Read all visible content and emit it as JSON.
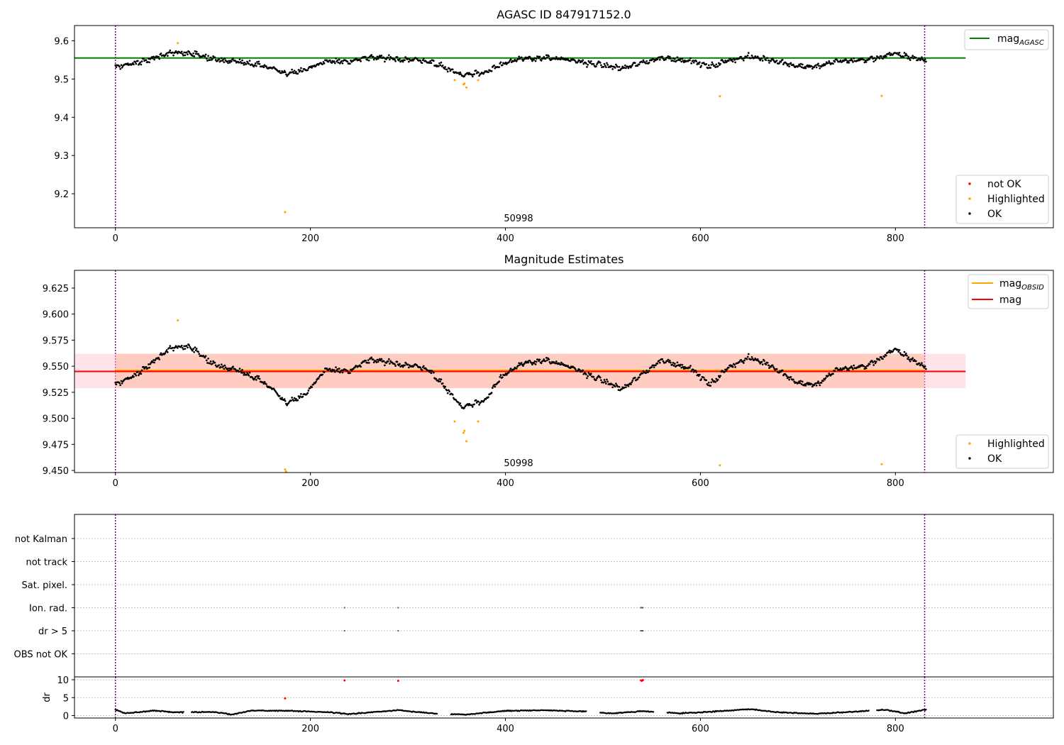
{
  "colors": {
    "ok": "#000000",
    "highlighted": "#ffa500",
    "not_ok": "#ff0000",
    "mag_agasc": "#008000",
    "mag_obsid": "#ffa500",
    "mag": "#ff0000",
    "obs_boundary": "#800080",
    "band_outer": "#ffc0cb",
    "band_inner": "#ffa07a"
  },
  "chart_data": [
    {
      "type": "scatter",
      "title": "AGASC ID 847917152.0",
      "xlim": [
        -42,
        962
      ],
      "ylim": [
        9.111,
        9.64
      ],
      "xticks": [
        "0",
        "200",
        "400",
        "600",
        "800"
      ],
      "yticks": [
        "9.2",
        "9.3",
        "9.4",
        "9.5",
        "9.6"
      ],
      "grid": false,
      "legend_placement": [
        "upper right",
        "lower right"
      ],
      "annotation": {
        "text": "50998",
        "x": 415
      },
      "obs_boundaries_x": [
        0,
        830
      ],
      "lines": [
        {
          "name": "mag",
          "sub": "AGASC",
          "y": 9.555,
          "x_range": [
            -42,
            872
          ],
          "color": "#008000"
        }
      ],
      "series": [
        {
          "name": "not OK",
          "color": "#ff0000",
          "points": []
        },
        {
          "name": "Highlighted",
          "color": "#ffa500",
          "points": [
            [
              64,
              9.594
            ],
            [
              174,
              9.152
            ],
            [
              348,
              9.497
            ],
            [
              357,
              9.486
            ],
            [
              358,
              9.488
            ],
            [
              360,
              9.478
            ],
            [
              372,
              9.497
            ],
            [
              620,
              9.455
            ],
            [
              786,
              9.456
            ]
          ]
        },
        {
          "name": "OK",
          "color": "#000000",
          "generated_from_trend": true,
          "x_range": [
            0,
            832
          ],
          "trend": [
            [
              0,
              9.533
            ],
            [
              20,
              9.541
            ],
            [
              40,
              9.555
            ],
            [
              55,
              9.566
            ],
            [
              75,
              9.57
            ],
            [
              100,
              9.552
            ],
            [
              130,
              9.545
            ],
            [
              150,
              9.536
            ],
            [
              165,
              9.525
            ],
            [
              175,
              9.515
            ],
            [
              195,
              9.522
            ],
            [
              215,
              9.547
            ],
            [
              240,
              9.545
            ],
            [
              260,
              9.556
            ],
            [
              300,
              9.551
            ],
            [
              320,
              9.548
            ],
            [
              340,
              9.528
            ],
            [
              355,
              9.511
            ],
            [
              365,
              9.513
            ],
            [
              380,
              9.518
            ],
            [
              395,
              9.54
            ],
            [
              420,
              9.553
            ],
            [
              440,
              9.556
            ],
            [
              470,
              9.548
            ],
            [
              500,
              9.536
            ],
            [
              520,
              9.528
            ],
            [
              540,
              9.542
            ],
            [
              560,
              9.556
            ],
            [
              590,
              9.548
            ],
            [
              610,
              9.532
            ],
            [
              630,
              9.55
            ],
            [
              650,
              9.558
            ],
            [
              670,
              9.552
            ],
            [
              700,
              9.534
            ],
            [
              720,
              9.532
            ],
            [
              740,
              9.547
            ],
            [
              770,
              9.55
            ],
            [
              800,
              9.566
            ],
            [
              832,
              9.548
            ]
          ]
        }
      ],
      "legends": [
        {
          "entries": [
            "mag"
          ],
          "sub": "AGASC"
        },
        {
          "entries": [
            "not OK",
            "Highlighted",
            "OK"
          ]
        }
      ]
    },
    {
      "type": "scatter",
      "title": "Magnitude Estimates",
      "xlim": [
        -42,
        962
      ],
      "ylim": [
        9.448,
        9.642
      ],
      "xticks": [
        "0",
        "200",
        "400",
        "600",
        "800"
      ],
      "yticks": [
        "9.450",
        "9.475",
        "9.500",
        "9.525",
        "9.550",
        "9.575",
        "9.600",
        "9.625"
      ],
      "grid": false,
      "legend_placement": [
        "upper right",
        "lower right"
      ],
      "annotation": {
        "text": "50998",
        "x": 415
      },
      "obs_boundaries_x": [
        0,
        830
      ],
      "bands": [
        {
          "y_range": [
            9.529,
            9.562
          ],
          "x_range": [
            -42,
            872
          ],
          "color": "#ffc0cb"
        },
        {
          "y_range": [
            9.529,
            9.562
          ],
          "x_range": [
            0,
            830
          ],
          "color": "#ffa07a"
        }
      ],
      "lines": [
        {
          "name": "mag",
          "sub": "OBSID",
          "y": 9.546,
          "x_range": [
            0,
            830
          ],
          "color": "#ffa500"
        },
        {
          "name": "mag",
          "y": 9.545,
          "x_range": [
            -42,
            872
          ],
          "color": "#ff0000"
        }
      ],
      "series": [
        {
          "name": "Highlighted",
          "color": "#ffa500",
          "points": [
            [
              64,
              9.594
            ],
            [
              174,
              9.451
            ],
            [
              175,
              9.449
            ],
            [
              348,
              9.497
            ],
            [
              357,
              9.486
            ],
            [
              358,
              9.488
            ],
            [
              360,
              9.478
            ],
            [
              372,
              9.497
            ],
            [
              620,
              9.455
            ],
            [
              786,
              9.456
            ]
          ]
        },
        {
          "name": "OK",
          "color": "#000000",
          "generated_from_trend": true,
          "x_range": [
            0,
            832
          ],
          "trend": [
            [
              0,
              9.533
            ],
            [
              20,
              9.541
            ],
            [
              40,
              9.555
            ],
            [
              55,
              9.566
            ],
            [
              75,
              9.57
            ],
            [
              100,
              9.552
            ],
            [
              130,
              9.545
            ],
            [
              150,
              9.536
            ],
            [
              165,
              9.525
            ],
            [
              175,
              9.515
            ],
            [
              195,
              9.522
            ],
            [
              215,
              9.547
            ],
            [
              240,
              9.545
            ],
            [
              260,
              9.556
            ],
            [
              300,
              9.551
            ],
            [
              320,
              9.548
            ],
            [
              340,
              9.528
            ],
            [
              355,
              9.511
            ],
            [
              365,
              9.513
            ],
            [
              380,
              9.518
            ],
            [
              395,
              9.54
            ],
            [
              420,
              9.553
            ],
            [
              440,
              9.556
            ],
            [
              470,
              9.548
            ],
            [
              500,
              9.536
            ],
            [
              520,
              9.528
            ],
            [
              540,
              9.542
            ],
            [
              560,
              9.556
            ],
            [
              590,
              9.548
            ],
            [
              610,
              9.532
            ],
            [
              630,
              9.55
            ],
            [
              650,
              9.558
            ],
            [
              670,
              9.552
            ],
            [
              700,
              9.534
            ],
            [
              720,
              9.532
            ],
            [
              740,
              9.547
            ],
            [
              770,
              9.55
            ],
            [
              800,
              9.566
            ],
            [
              832,
              9.548
            ]
          ]
        }
      ],
      "legends": [
        {
          "entries": [
            "mag",
            "mag"
          ],
          "sub": [
            "OBSID",
            ""
          ]
        },
        {
          "entries": [
            "Highlighted",
            "OK"
          ]
        }
      ]
    },
    {
      "type": "scatter",
      "title": "",
      "xlim": [
        -42,
        962
      ],
      "categories": [
        "not Kalman",
        "not track",
        "Sat. pixel.",
        "Ion. rad.",
        "dr > 5",
        "OBS not OK"
      ],
      "grid": true,
      "obs_boundaries_x": [
        0,
        830
      ],
      "flag_points": [
        {
          "category": "Ion. rad.",
          "x": [
            235,
            290,
            539,
            540,
            541
          ]
        },
        {
          "category": "dr > 5",
          "x": [
            235,
            290,
            539,
            540,
            541
          ]
        }
      ]
    },
    {
      "type": "scatter",
      "title": "",
      "xlim": [
        -42,
        962
      ],
      "ylim": [
        -0.7,
        10.8
      ],
      "ylabel": "dr",
      "xticks": [
        "0",
        "200",
        "400",
        "600",
        "800"
      ],
      "yticks": [
        "0",
        "5",
        "10"
      ],
      "grid": true,
      "obs_boundaries_x": [
        0,
        830
      ],
      "red_points": [
        [
          174,
          4.8
        ],
        [
          235,
          9.8
        ],
        [
          290,
          9.7
        ],
        [
          539,
          9.8
        ],
        [
          540,
          9.7
        ],
        [
          541,
          9.9
        ]
      ],
      "series": [
        {
          "name": "dr",
          "color": "#000000",
          "generated_from_trend": true,
          "x_range": [
            0,
            832
          ],
          "trend": [
            [
              0,
              1.6
            ],
            [
              10,
              0.6
            ],
            [
              40,
              1.4
            ],
            [
              60,
              0.9
            ],
            [
              100,
              1.0
            ],
            [
              120,
              0.3
            ],
            [
              140,
              1.4
            ],
            [
              180,
              1.3
            ],
            [
              220,
              0.9
            ],
            [
              240,
              0.4
            ],
            [
              290,
              1.5
            ],
            [
              330,
              0.5
            ],
            [
              360,
              0.3
            ],
            [
              400,
              1.3
            ],
            [
              440,
              1.5
            ],
            [
              480,
              1.1
            ],
            [
              510,
              0.6
            ],
            [
              540,
              1.2
            ],
            [
              580,
              0.6
            ],
            [
              620,
              1.2
            ],
            [
              650,
              1.8
            ],
            [
              680,
              0.9
            ],
            [
              720,
              0.5
            ],
            [
              760,
              1.1
            ],
            [
              790,
              1.6
            ],
            [
              810,
              0.6
            ],
            [
              832,
              1.7
            ]
          ],
          "gaps": [
            [
              70,
              78
            ],
            [
              330,
              344
            ],
            [
              483,
              497
            ],
            [
              552,
              566
            ],
            [
              773,
              781
            ]
          ]
        }
      ]
    }
  ]
}
